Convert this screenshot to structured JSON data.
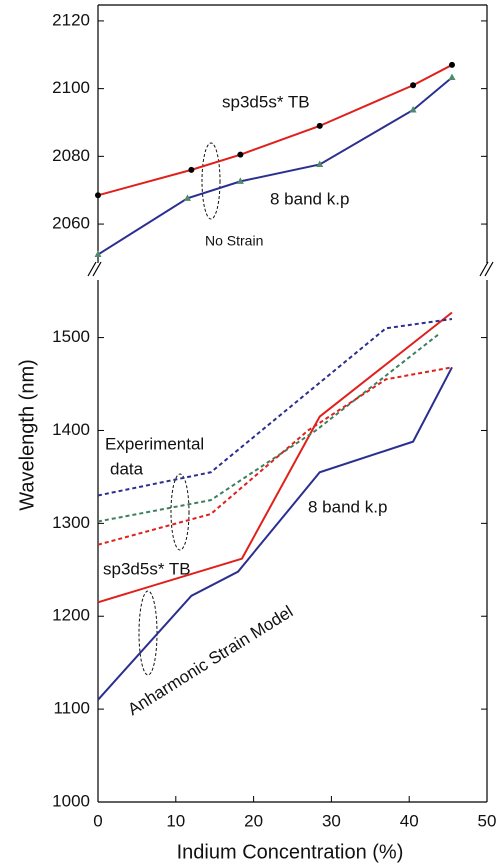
{
  "chart_data": [
    {
      "type": "line",
      "xlim": [
        0,
        50
      ],
      "ylim": [
        2048.5,
        2124.7
      ],
      "yticks": [
        2060,
        2080,
        2100,
        2120
      ],
      "annotations": [
        "sp3d5s* TB",
        "8 band k.p",
        "No Strain"
      ],
      "series": [
        {
          "color": "#e0201b",
          "marker": "circle",
          "marker_color": "#000000",
          "dash": false,
          "x": [
            0,
            12,
            18.3,
            28.5,
            40.5,
            45.5
          ],
          "values": [
            2068.5,
            2076,
            2080.5,
            2089,
            2101,
            2107
          ]
        },
        {
          "color": "#2b2f8f",
          "marker": "triangle",
          "marker_color": "#4f8a6a",
          "dash": false,
          "x": [
            0,
            11.5,
            18.3,
            28.5,
            40.5,
            45.5
          ],
          "values": [
            2051,
            2067.6,
            2072.6,
            2077.6,
            2093.7,
            2103.3
          ]
        }
      ]
    },
    {
      "type": "line",
      "xlim": [
        0,
        50
      ],
      "xticks": [
        0,
        10,
        20,
        30,
        40,
        50
      ],
      "ylim": [
        1000,
        1562
      ],
      "yticks": [
        1000,
        1100,
        1200,
        1300,
        1400,
        1500
      ],
      "xlabel": "Indium Concentration (%)",
      "ylabel": "Wavelength (nm)",
      "annotations": [
        "Experimental",
        "data",
        "8 band k.p",
        "sp3d5s* TB",
        "Anharmonic Strain Model"
      ],
      "series": [
        {
          "color": "#e0201b",
          "dash": false,
          "x": [
            0,
            18.5,
            28.5,
            45.5
          ],
          "values": [
            1215,
            1262,
            1415,
            1527
          ]
        },
        {
          "color": "#2b2f8f",
          "dash": false,
          "x": [
            0,
            12,
            18,
            28.5,
            40.5,
            45.5
          ],
          "values": [
            1110,
            1222,
            1248,
            1355,
            1388,
            1468
          ]
        },
        {
          "color": "#2b2f8f",
          "dash": true,
          "x": [
            0,
            14.5,
            37,
            45.5
          ],
          "values": [
            1330,
            1355,
            1510,
            1520
          ]
        },
        {
          "color": "#3f7f5f",
          "dash": true,
          "x": [
            0,
            14.5,
            28,
            44
          ],
          "values": [
            1302,
            1325,
            1400,
            1505
          ]
        },
        {
          "color": "#e0201b",
          "dash": true,
          "x": [
            0,
            14.5,
            27,
            37,
            45.5
          ],
          "values": [
            1277,
            1310,
            1400,
            1455,
            1468
          ]
        }
      ]
    }
  ]
}
